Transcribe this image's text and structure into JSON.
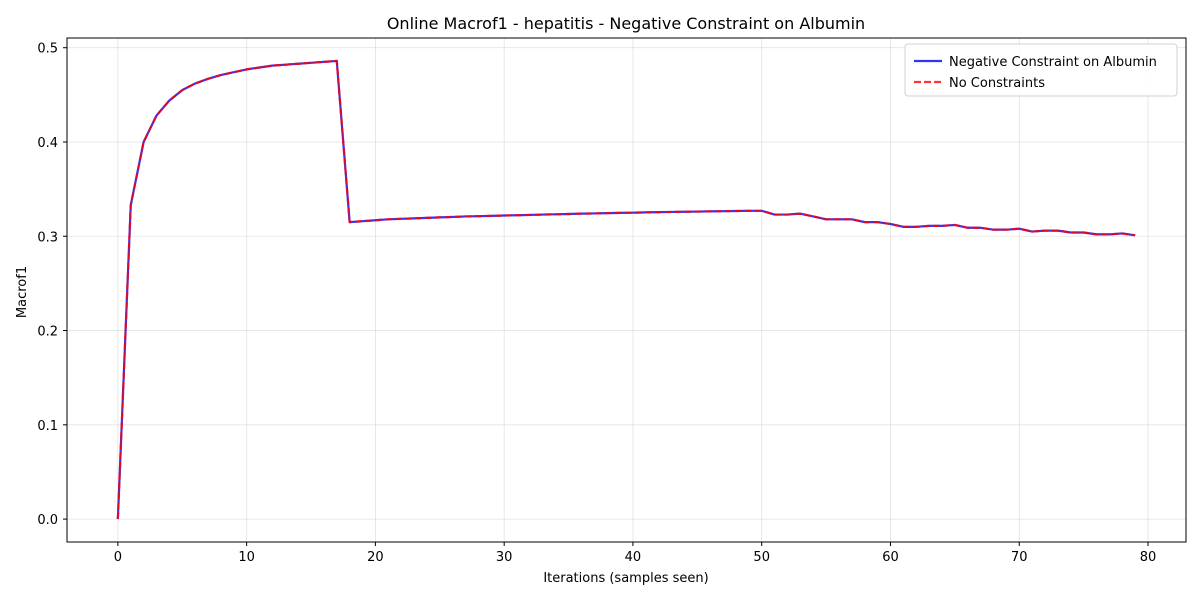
{
  "chart_data": {
    "type": "line",
    "title": "Online Macrof1 - hepatitis - Negative Constraint on Albumin",
    "xlabel": "Iterations (samples seen)",
    "ylabel": "Macrof1",
    "xlim": [
      -3.95,
      82.95
    ],
    "ylim": [
      -0.0243,
      0.5103
    ],
    "xticks": [
      0,
      10,
      20,
      30,
      40,
      50,
      60,
      70,
      80
    ],
    "xtick_labels": [
      "0",
      "10",
      "20",
      "30",
      "40",
      "50",
      "60",
      "70",
      "80"
    ],
    "yticks": [
      0.0,
      0.1,
      0.2,
      0.3,
      0.4,
      0.5
    ],
    "ytick_labels": [
      "0.0",
      "0.1",
      "0.2",
      "0.3",
      "0.4",
      "0.5"
    ],
    "grid": true,
    "legend_position": "top-right",
    "series": [
      {
        "name": "Negative Constraint on Albumin",
        "color": "#0000ff",
        "line_style": "solid",
        "x": [
          0,
          1,
          2,
          3,
          4,
          5,
          6,
          7,
          8,
          9,
          10,
          11,
          12,
          13,
          14,
          15,
          16,
          17,
          18,
          19,
          20,
          21,
          22,
          23,
          24,
          25,
          26,
          27,
          28,
          29,
          30,
          31,
          32,
          33,
          34,
          35,
          36,
          37,
          38,
          39,
          40,
          41,
          42,
          43,
          44,
          45,
          46,
          47,
          48,
          49,
          50,
          51,
          52,
          53,
          54,
          55,
          56,
          57,
          58,
          59,
          60,
          61,
          62,
          63,
          64,
          65,
          66,
          67,
          68,
          69,
          70,
          71,
          72,
          73,
          74,
          75,
          76,
          77,
          78,
          79
        ],
        "y": [
          0.0,
          0.333,
          0.4,
          0.428,
          0.444,
          0.455,
          0.462,
          0.467,
          0.471,
          0.474,
          0.477,
          0.479,
          0.481,
          0.482,
          0.483,
          0.484,
          0.485,
          0.486,
          0.315,
          0.316,
          0.317,
          0.318,
          0.3185,
          0.319,
          0.3195,
          0.32,
          0.3205,
          0.321,
          0.3213,
          0.3216,
          0.322,
          0.3223,
          0.3226,
          0.323,
          0.3233,
          0.3236,
          0.324,
          0.3242,
          0.3245,
          0.3248,
          0.325,
          0.3253,
          0.3256,
          0.3258,
          0.326,
          0.3262,
          0.3264,
          0.3266,
          0.3268,
          0.327,
          0.327,
          0.323,
          0.323,
          0.324,
          0.321,
          0.318,
          0.318,
          0.318,
          0.315,
          0.315,
          0.313,
          0.31,
          0.31,
          0.311,
          0.311,
          0.312,
          0.309,
          0.309,
          0.307,
          0.307,
          0.308,
          0.305,
          0.306,
          0.306,
          0.304,
          0.304,
          0.302,
          0.302,
          0.303,
          0.301
        ]
      },
      {
        "name": "No Constraints",
        "color": "#ff0000",
        "line_style": "dashed",
        "x": [
          0,
          1,
          2,
          3,
          4,
          5,
          6,
          7,
          8,
          9,
          10,
          11,
          12,
          13,
          14,
          15,
          16,
          17,
          18,
          19,
          20,
          21,
          22,
          23,
          24,
          25,
          26,
          27,
          28,
          29,
          30,
          31,
          32,
          33,
          34,
          35,
          36,
          37,
          38,
          39,
          40,
          41,
          42,
          43,
          44,
          45,
          46,
          47,
          48,
          49,
          50,
          51,
          52,
          53,
          54,
          55,
          56,
          57,
          58,
          59,
          60,
          61,
          62,
          63,
          64,
          65,
          66,
          67,
          68,
          69,
          70,
          71,
          72,
          73,
          74,
          75,
          76,
          77,
          78,
          79
        ],
        "y": [
          0.0,
          0.333,
          0.4,
          0.428,
          0.444,
          0.455,
          0.462,
          0.467,
          0.471,
          0.474,
          0.477,
          0.479,
          0.481,
          0.482,
          0.483,
          0.484,
          0.485,
          0.486,
          0.315,
          0.316,
          0.317,
          0.318,
          0.3185,
          0.319,
          0.3195,
          0.32,
          0.3205,
          0.321,
          0.3213,
          0.3216,
          0.322,
          0.3223,
          0.3226,
          0.323,
          0.3233,
          0.3236,
          0.324,
          0.3242,
          0.3245,
          0.3248,
          0.325,
          0.3253,
          0.3256,
          0.3258,
          0.326,
          0.3262,
          0.3264,
          0.3266,
          0.3268,
          0.327,
          0.327,
          0.323,
          0.323,
          0.324,
          0.321,
          0.318,
          0.318,
          0.318,
          0.315,
          0.315,
          0.313,
          0.31,
          0.31,
          0.311,
          0.311,
          0.312,
          0.309,
          0.309,
          0.307,
          0.307,
          0.308,
          0.305,
          0.306,
          0.306,
          0.304,
          0.304,
          0.302,
          0.302,
          0.303,
          0.301
        ]
      }
    ]
  }
}
